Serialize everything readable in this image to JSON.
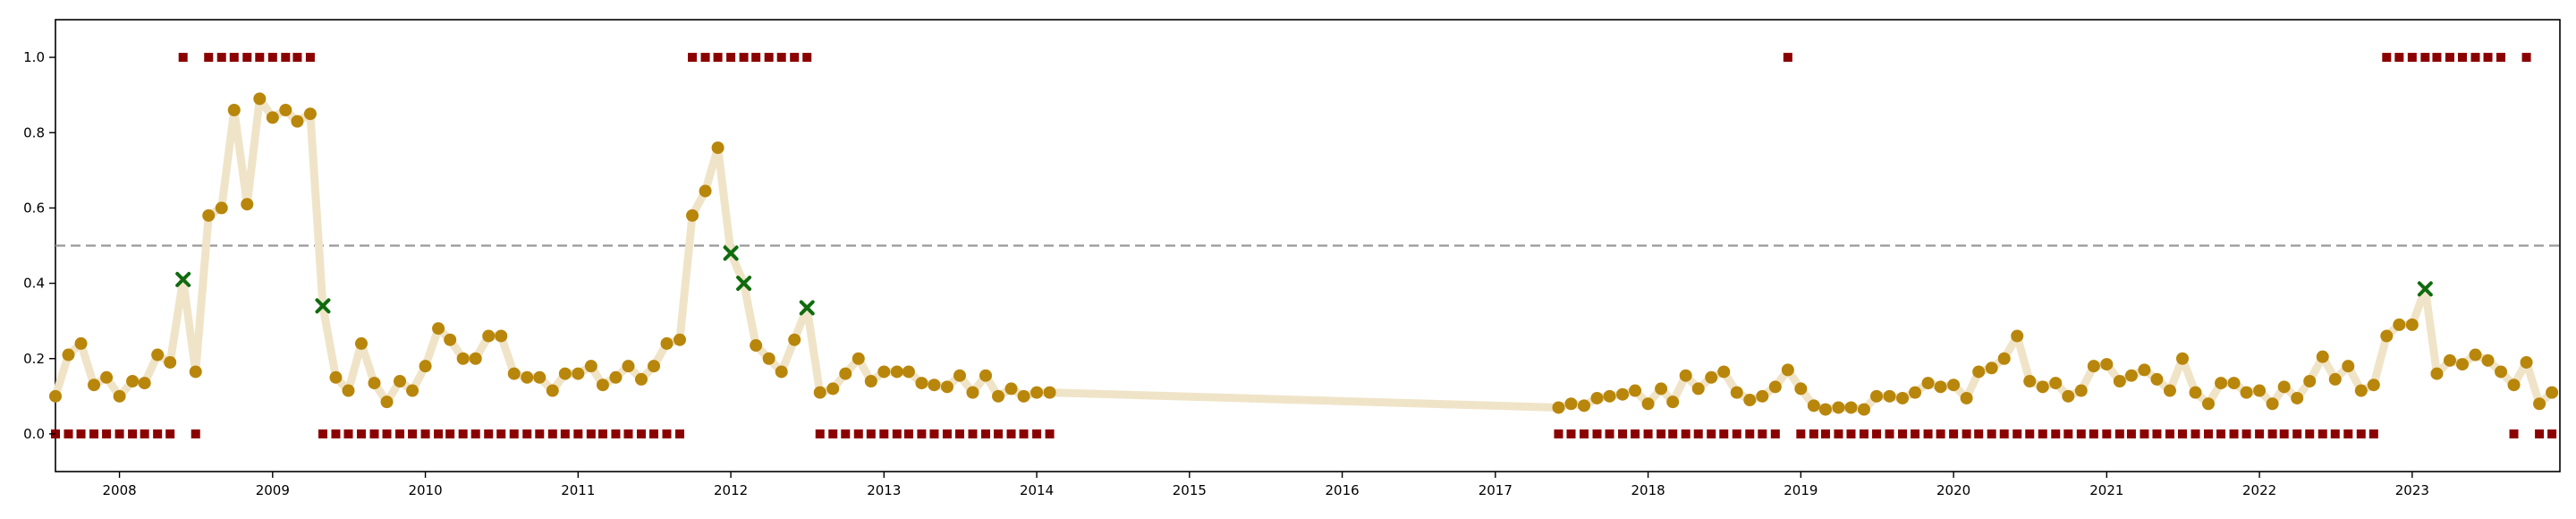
{
  "chart_data": {
    "type": "scatter",
    "title": "",
    "xlabel": "",
    "ylabel": "",
    "x_type": "date",
    "xlim": [
      "2007-08-01",
      "2023-12-20"
    ],
    "ylim": [
      -0.1,
      1.1
    ],
    "grid": false,
    "legend": "none",
    "x_tick_labels": [
      "2008",
      "2009",
      "2010",
      "2011",
      "2012",
      "2013",
      "2014",
      "2015",
      "2016",
      "2017",
      "2018",
      "2019",
      "2020",
      "2021",
      "2022",
      "2023"
    ],
    "y_tick_labels": [
      "0.0",
      "0.2",
      "0.4",
      "0.6",
      "0.8",
      "1.0"
    ],
    "threshold": 0.5,
    "colors": {
      "trend_line": "#f0e4c8",
      "below_threshold_marker": "#b8860b",
      "above_threshold_marker": "#0f6b0f",
      "label_marker": "#8b0000",
      "threshold_line": "#999999"
    },
    "series": [
      {
        "marker": "circle",
        "x": [
          "2007-08-01",
          "2007-09-01",
          "2007-10-01",
          "2007-11-01",
          "2007-12-01",
          "2008-01-01",
          "2008-02-01",
          "2008-03-01",
          "2008-04-01",
          "2008-05-01",
          "2008-06-01",
          "2008-07-01",
          "2008-08-01",
          "2008-09-01",
          "2008-10-01",
          "2008-11-01",
          "2008-12-01",
          "2009-01-01",
          "2009-02-01",
          "2009-03-01",
          "2009-04-01",
          "2009-05-01",
          "2009-06-01",
          "2009-07-01",
          "2009-08-01",
          "2009-09-01",
          "2009-10-01",
          "2009-11-01",
          "2009-12-01",
          "2010-01-01",
          "2010-02-01",
          "2010-03-01",
          "2010-04-01",
          "2010-05-01",
          "2010-06-01",
          "2010-07-01",
          "2010-08-01",
          "2010-09-01",
          "2010-10-01",
          "2010-11-01",
          "2010-12-01",
          "2011-01-01",
          "2011-02-01",
          "2011-03-01",
          "2011-04-01",
          "2011-05-01",
          "2011-06-01",
          "2011-07-01",
          "2011-08-01",
          "2011-09-01",
          "2011-10-01",
          "2011-11-01",
          "2011-12-01",
          "2012-01-01",
          "2012-02-01",
          "2012-03-01",
          "2012-04-01",
          "2012-05-01",
          "2012-06-01",
          "2012-07-01",
          "2012-08-01",
          "2012-09-01",
          "2012-10-01",
          "2012-11-01",
          "2012-12-01",
          "2013-01-01",
          "2013-02-01",
          "2013-03-01",
          "2013-04-01",
          "2013-05-01",
          "2013-06-01",
          "2013-07-01",
          "2013-08-01",
          "2013-09-01",
          "2013-10-01",
          "2013-11-01",
          "2013-12-01",
          "2014-01-01",
          "2014-02-01",
          "2017-06-01",
          "2017-07-01",
          "2017-08-01",
          "2017-09-01",
          "2017-10-01",
          "2017-11-01",
          "2017-12-01",
          "2018-01-01",
          "2018-02-01",
          "2018-03-01",
          "2018-04-01",
          "2018-05-01",
          "2018-06-01",
          "2018-07-01",
          "2018-08-01",
          "2018-09-01",
          "2018-10-01",
          "2018-11-01",
          "2018-12-01",
          "2019-01-01",
          "2019-02-01",
          "2019-03-01",
          "2019-04-01",
          "2019-05-01",
          "2019-06-01",
          "2019-07-01",
          "2019-08-01",
          "2019-09-01",
          "2019-10-01",
          "2019-11-01",
          "2019-12-01",
          "2020-01-01",
          "2020-02-01",
          "2020-03-01",
          "2020-04-01",
          "2020-05-01",
          "2020-06-01",
          "2020-07-01",
          "2020-08-01",
          "2020-09-01",
          "2020-10-01",
          "2020-11-01",
          "2020-12-01",
          "2021-01-01",
          "2021-02-01",
          "2021-03-01",
          "2021-04-01",
          "2021-05-01",
          "2021-06-01",
          "2021-07-01",
          "2021-08-01",
          "2021-09-01",
          "2021-10-01",
          "2021-11-01",
          "2021-12-01",
          "2022-01-01",
          "2022-02-01",
          "2022-03-01",
          "2022-04-01",
          "2022-05-01",
          "2022-06-01",
          "2022-07-01",
          "2022-08-01",
          "2022-09-01",
          "2022-10-01",
          "2022-11-01",
          "2022-12-01",
          "2023-01-01",
          "2023-02-01",
          "2023-03-01",
          "2023-04-01",
          "2023-05-01",
          "2023-06-01",
          "2023-07-01",
          "2023-08-01",
          "2023-09-01",
          "2023-10-01",
          "2023-11-01",
          "2023-12-01"
        ],
        "values": [
          0.1,
          0.21,
          0.24,
          0.13,
          0.15,
          0.1,
          0.14,
          0.135,
          0.21,
          0.19,
          0.41,
          0.165,
          0.58,
          0.6,
          0.86,
          0.61,
          0.89,
          0.84,
          0.86,
          0.83,
          0.85,
          0.34,
          0.15,
          0.115,
          0.24,
          0.135,
          0.085,
          0.14,
          0.115,
          0.18,
          0.28,
          0.25,
          0.2,
          0.2,
          0.26,
          0.26,
          0.16,
          0.15,
          0.15,
          0.115,
          0.16,
          0.16,
          0.18,
          0.13,
          0.15,
          0.18,
          0.145,
          0.18,
          0.24,
          0.25,
          0.58,
          0.645,
          0.76,
          0.48,
          0.4,
          0.235,
          0.2,
          0.165,
          0.25,
          0.335,
          0.11,
          0.12,
          0.16,
          0.2,
          0.14,
          0.165,
          0.165,
          0.165,
          0.135,
          0.13,
          0.125,
          0.155,
          0.11,
          0.155,
          0.1,
          0.12,
          0.1,
          0.11,
          0.11,
          0.07,
          0.08,
          0.075,
          0.095,
          0.1,
          0.105,
          0.115,
          0.08,
          0.12,
          0.085,
          0.155,
          0.12,
          0.15,
          0.165,
          0.11,
          0.09,
          0.1,
          0.125,
          0.17,
          0.12,
          0.075,
          0.065,
          0.07,
          0.07,
          0.065,
          0.1,
          0.1,
          0.095,
          0.11,
          0.135,
          0.125,
          0.13,
          0.095,
          0.165,
          0.175,
          0.2,
          0.26,
          0.14,
          0.125,
          0.135,
          0.1,
          0.115,
          0.18,
          0.185,
          0.14,
          0.155,
          0.17,
          0.145,
          0.115,
          0.2,
          0.11,
          0.08,
          0.135,
          0.135,
          0.11,
          0.115,
          0.08,
          0.125,
          0.095,
          0.14,
          0.205,
          0.145,
          0.18,
          0.115,
          0.13,
          0.26,
          0.29,
          0.29,
          0.385,
          0.16,
          0.195,
          0.185,
          0.21,
          0.195,
          0.165,
          0.13,
          0.19,
          0.08,
          0.11
        ]
      },
      {
        "marker": "square",
        "x": [
          "2007-08-01",
          "2007-09-01",
          "2007-10-01",
          "2007-11-01",
          "2007-12-01",
          "2008-01-01",
          "2008-02-01",
          "2008-03-01",
          "2008-04-01",
          "2008-05-01",
          "2008-06-01",
          "2008-07-01",
          "2008-08-01",
          "2008-09-01",
          "2008-10-01",
          "2008-11-01",
          "2008-12-01",
          "2009-01-01",
          "2009-02-01",
          "2009-03-01",
          "2009-04-01",
          "2009-05-01",
          "2009-06-01",
          "2009-07-01",
          "2009-08-01",
          "2009-09-01",
          "2009-10-01",
          "2009-11-01",
          "2009-12-01",
          "2010-01-01",
          "2010-02-01",
          "2010-03-01",
          "2010-04-01",
          "2010-05-01",
          "2010-06-01",
          "2010-07-01",
          "2010-08-01",
          "2010-09-01",
          "2010-10-01",
          "2010-11-01",
          "2010-12-01",
          "2011-01-01",
          "2011-02-01",
          "2011-03-01",
          "2011-04-01",
          "2011-05-01",
          "2011-06-01",
          "2011-07-01",
          "2011-08-01",
          "2011-09-01",
          "2011-10-01",
          "2011-11-01",
          "2011-12-01",
          "2012-01-01",
          "2012-02-01",
          "2012-03-01",
          "2012-04-01",
          "2012-05-01",
          "2012-06-01",
          "2012-07-01",
          "2012-08-01",
          "2012-09-01",
          "2012-10-01",
          "2012-11-01",
          "2012-12-01",
          "2013-01-01",
          "2013-02-01",
          "2013-03-01",
          "2013-04-01",
          "2013-05-01",
          "2013-06-01",
          "2013-07-01",
          "2013-08-01",
          "2013-09-01",
          "2013-10-01",
          "2013-11-01",
          "2013-12-01",
          "2014-01-01",
          "2014-02-01",
          "2017-06-01",
          "2017-07-01",
          "2017-08-01",
          "2017-09-01",
          "2017-10-01",
          "2017-11-01",
          "2017-12-01",
          "2018-01-01",
          "2018-02-01",
          "2018-03-01",
          "2018-04-01",
          "2018-05-01",
          "2018-06-01",
          "2018-07-01",
          "2018-08-01",
          "2018-09-01",
          "2018-10-01",
          "2018-11-01",
          "2018-12-01",
          "2019-01-01",
          "2019-02-01",
          "2019-03-01",
          "2019-04-01",
          "2019-05-01",
          "2019-06-01",
          "2019-07-01",
          "2019-08-01",
          "2019-09-01",
          "2019-10-01",
          "2019-11-01",
          "2019-12-01",
          "2020-01-01",
          "2020-02-01",
          "2020-03-01",
          "2020-04-01",
          "2020-05-01",
          "2020-06-01",
          "2020-07-01",
          "2020-08-01",
          "2020-09-01",
          "2020-10-01",
          "2020-11-01",
          "2020-12-01",
          "2021-01-01",
          "2021-02-01",
          "2021-03-01",
          "2021-04-01",
          "2021-05-01",
          "2021-06-01",
          "2021-07-01",
          "2021-08-01",
          "2021-09-01",
          "2021-10-01",
          "2021-11-01",
          "2021-12-01",
          "2022-01-01",
          "2022-02-01",
          "2022-03-01",
          "2022-04-01",
          "2022-05-01",
          "2022-06-01",
          "2022-07-01",
          "2022-08-01",
          "2022-09-01",
          "2022-10-01",
          "2022-11-01",
          "2022-12-01",
          "2023-01-01",
          "2023-02-01",
          "2023-03-01",
          "2023-04-01",
          "2023-05-01",
          "2023-06-01",
          "2023-07-01",
          "2023-08-01",
          "2023-09-01",
          "2023-10-01",
          "2023-11-01",
          "2023-12-01"
        ],
        "values": [
          0,
          0,
          0,
          0,
          0,
          0,
          0,
          0,
          0,
          0,
          1,
          0,
          1,
          1,
          1,
          1,
          1,
          1,
          1,
          1,
          1,
          0,
          0,
          0,
          0,
          0,
          0,
          0,
          0,
          0,
          0,
          0,
          0,
          0,
          0,
          0,
          0,
          0,
          0,
          0,
          0,
          0,
          0,
          0,
          0,
          0,
          0,
          0,
          0,
          0,
          1,
          1,
          1,
          1,
          1,
          1,
          1,
          1,
          1,
          1,
          0,
          0,
          0,
          0,
          0,
          0,
          0,
          0,
          0,
          0,
          0,
          0,
          0,
          0,
          0,
          0,
          0,
          0,
          0,
          0,
          0,
          0,
          0,
          0,
          0,
          0,
          0,
          0,
          0,
          0,
          0,
          0,
          0,
          0,
          0,
          0,
          0,
          1,
          0,
          0,
          0,
          0,
          0,
          0,
          0,
          0,
          0,
          0,
          0,
          0,
          0,
          0,
          0,
          0,
          0,
          0,
          0,
          0,
          0,
          0,
          0,
          0,
          0,
          0,
          0,
          0,
          0,
          0,
          0,
          0,
          0,
          0,
          0,
          0,
          0,
          0,
          0,
          0,
          0,
          0,
          0,
          0,
          0,
          0,
          1,
          1,
          1,
          1,
          1,
          1,
          1,
          1,
          1,
          1,
          0,
          1,
          0,
          0
        ]
      }
    ]
  }
}
